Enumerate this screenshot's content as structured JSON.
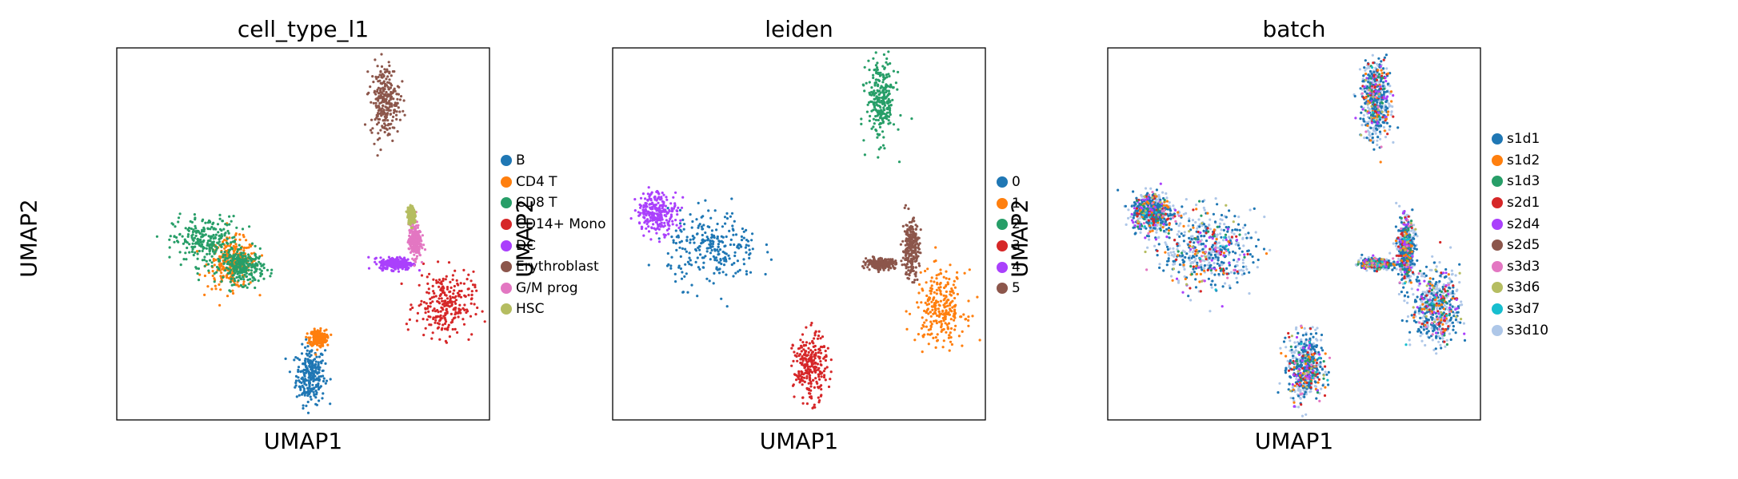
{
  "chart_data": [
    {
      "type": "scatter",
      "title": "cell_type_l1",
      "xlabel": "UMAP1",
      "ylabel": "UMAP2",
      "xticks": [],
      "yticks": [],
      "legend_position": "right",
      "series": [
        {
          "name": "B",
          "color": "#1f77b4",
          "clusters": [
            [
              0.52,
              0.12,
              0.035,
              0.07
            ]
          ]
        },
        {
          "name": "CD4 T",
          "color": "#ff7f0e",
          "clusters": [
            [
              0.31,
              0.42,
              0.06,
              0.06
            ],
            [
              0.54,
              0.22,
              0.02,
              0.02
            ]
          ]
        },
        {
          "name": "CD8 T",
          "color": "#279e68",
          "clusters": [
            [
              0.24,
              0.48,
              0.08,
              0.06
            ],
            [
              0.34,
              0.41,
              0.05,
              0.04
            ]
          ]
        },
        {
          "name": "CD14+ Mono",
          "color": "#d62728",
          "clusters": [
            [
              0.88,
              0.31,
              0.07,
              0.08
            ]
          ]
        },
        {
          "name": "DC",
          "color": "#aa40fc",
          "clusters": [
            [
              0.75,
              0.42,
              0.04,
              0.015
            ]
          ]
        },
        {
          "name": "Erythroblast",
          "color": "#8c564b",
          "clusters": [
            [
              0.72,
              0.86,
              0.035,
              0.09
            ]
          ]
        },
        {
          "name": "G/M prog",
          "color": "#e377c2",
          "clusters": [
            [
              0.8,
              0.48,
              0.015,
              0.04
            ]
          ]
        },
        {
          "name": "HSC",
          "color": "#b5bd61",
          "clusters": [
            [
              0.79,
              0.55,
              0.008,
              0.02
            ]
          ]
        }
      ]
    },
    {
      "type": "scatter",
      "title": "leiden",
      "xlabel": "UMAP1",
      "ylabel": "UMAP2",
      "xticks": [],
      "yticks": [],
      "legend_position": "right",
      "series": [
        {
          "name": "0",
          "color": "#1f77b4",
          "clusters": [
            [
              0.27,
              0.46,
              0.11,
              0.09
            ]
          ]
        },
        {
          "name": "1",
          "color": "#ff7f0e",
          "clusters": [
            [
              0.88,
              0.3,
              0.06,
              0.09
            ]
          ]
        },
        {
          "name": "2",
          "color": "#279e68",
          "clusters": [
            [
              0.72,
              0.86,
              0.035,
              0.1
            ]
          ]
        },
        {
          "name": "3",
          "color": "#d62728",
          "clusters": [
            [
              0.53,
              0.14,
              0.04,
              0.08
            ]
          ]
        },
        {
          "name": "4",
          "color": "#aa40fc",
          "clusters": [
            [
              0.12,
              0.56,
              0.05,
              0.05
            ]
          ]
        },
        {
          "name": "5",
          "color": "#8c564b",
          "clusters": [
            [
              0.8,
              0.46,
              0.02,
              0.07
            ],
            [
              0.72,
              0.42,
              0.035,
              0.012
            ]
          ]
        }
      ]
    },
    {
      "type": "scatter",
      "title": "batch",
      "xlabel": "UMAP1",
      "ylabel": "UMAP2",
      "xticks": [],
      "yticks": [],
      "legend_position": "right",
      "series": [
        {
          "name": "s1d1",
          "color": "#1f77b4"
        },
        {
          "name": "s1d2",
          "color": "#ff7f0e"
        },
        {
          "name": "s1d3",
          "color": "#279e68"
        },
        {
          "name": "s2d1",
          "color": "#d62728"
        },
        {
          "name": "s2d4",
          "color": "#aa40fc"
        },
        {
          "name": "s2d5",
          "color": "#8c564b"
        },
        {
          "name": "s3d3",
          "color": "#e377c2"
        },
        {
          "name": "s3d6",
          "color": "#b5bd61"
        },
        {
          "name": "s3d7",
          "color": "#17becf"
        },
        {
          "name": "s3d10",
          "color": "#aec7e8"
        }
      ]
    }
  ]
}
